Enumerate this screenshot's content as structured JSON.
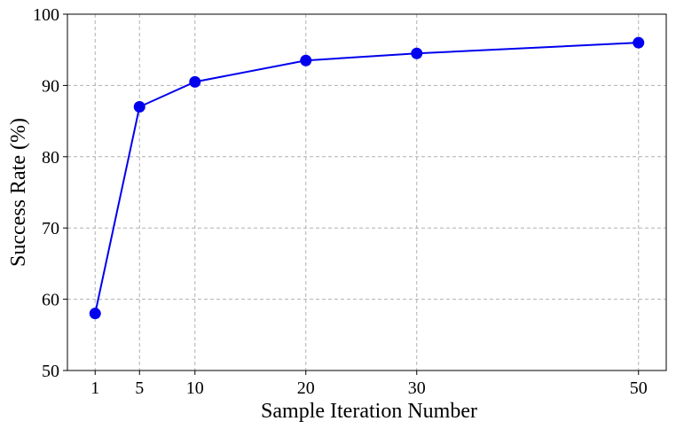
{
  "chart_data": {
    "type": "line",
    "title": "",
    "xlabel": "Sample Iteration Number",
    "ylabel": "Success Rate (%)",
    "x_ticks": [
      1,
      5,
      10,
      20,
      30,
      50
    ],
    "y_ticks": [
      50,
      60,
      70,
      80,
      90,
      100
    ],
    "xlim": [
      -1.5,
      52.5
    ],
    "ylim": [
      50,
      100
    ],
    "grid": true,
    "series": [
      {
        "x": [
          1,
          5,
          10,
          20,
          30,
          50
        ],
        "y": [
          58,
          87,
          90.5,
          93.5,
          94.5,
          96
        ],
        "color": "#0000ee",
        "marker": "circle"
      }
    ]
  }
}
